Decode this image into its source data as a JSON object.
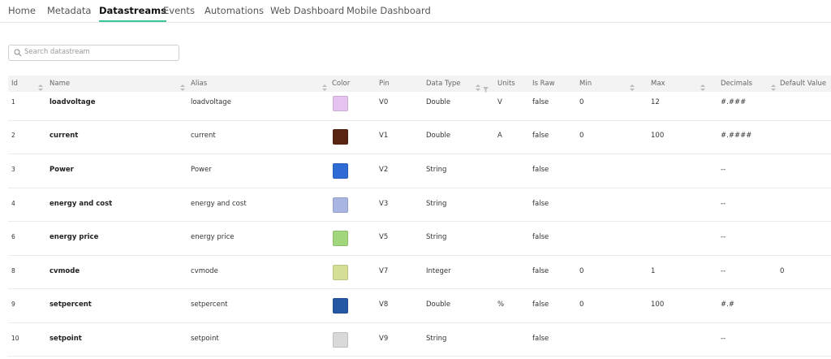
{
  "tabs": [
    "Home",
    "Metadata",
    "Datastreams",
    "Events",
    "Automations",
    "Web Dashboard",
    "Mobile Dashboard"
  ],
  "active_tab": 2,
  "search": {
    "placeholder": "Search datastream"
  },
  "table": {
    "headers": [
      "Id",
      "Name",
      "Alias",
      "Color",
      "Pin",
      "Data Type",
      "Units",
      "Is Raw",
      "Min",
      "Max",
      "Decimals",
      "Default Value"
    ],
    "rows": [
      {
        "id": 1,
        "name": "loadvoltage",
        "alias": "loadvoltage",
        "color": "#e6c3ef",
        "pin": "V0",
        "data_type": "Double",
        "units": "V",
        "is_raw": "false",
        "min": 0,
        "max": 12,
        "decimals": "#.###",
        "default_value": null
      },
      {
        "id": 2,
        "name": "current",
        "alias": "current",
        "color": "#5a2413",
        "pin": "V1",
        "data_type": "Double",
        "units": "A",
        "is_raw": "false",
        "min": 0,
        "max": 100,
        "decimals": "#.####",
        "default_value": null
      },
      {
        "id": 3,
        "name": "Power",
        "alias": "Power",
        "color": "#2e6bd4",
        "pin": "V2",
        "data_type": "String",
        "units": null,
        "is_raw": "false",
        "min": null,
        "max": null,
        "decimals": "--",
        "default_value": null
      },
      {
        "id": 4,
        "name": "energy and cost",
        "alias": "energy and cost",
        "color": "#a8b5e2",
        "pin": "V3",
        "data_type": "String",
        "units": null,
        "is_raw": "false",
        "min": null,
        "max": null,
        "decimals": "--",
        "default_value": null
      },
      {
        "id": 6,
        "name": "energy price",
        "alias": "energy price",
        "color": "#a2d67c",
        "pin": "V5",
        "data_type": "String",
        "units": null,
        "is_raw": "false",
        "min": null,
        "max": null,
        "decimals": "--",
        "default_value": null
      },
      {
        "id": 8,
        "name": "cvmode",
        "alias": "cvmode",
        "color": "#d6dd95",
        "pin": "V7",
        "data_type": "Integer",
        "units": null,
        "is_raw": "false",
        "min": 0,
        "max": 1,
        "decimals": "--",
        "default_value": 0
      },
      {
        "id": 9,
        "name": "setpercent",
        "alias": "setpercent",
        "color": "#2657a5",
        "pin": "V8",
        "data_type": "Double",
        "units": "%",
        "is_raw": "false",
        "min": 0,
        "max": 100,
        "decimals": "#.#",
        "default_value": null
      },
      {
        "id": 10,
        "name": "setpoint",
        "alias": "setpoint",
        "color": "#d9d9d9",
        "pin": "V9",
        "data_type": "String",
        "units": null,
        "is_raw": "false",
        "min": null,
        "max": null,
        "decimals": "--",
        "default_value": null
      }
    ]
  }
}
